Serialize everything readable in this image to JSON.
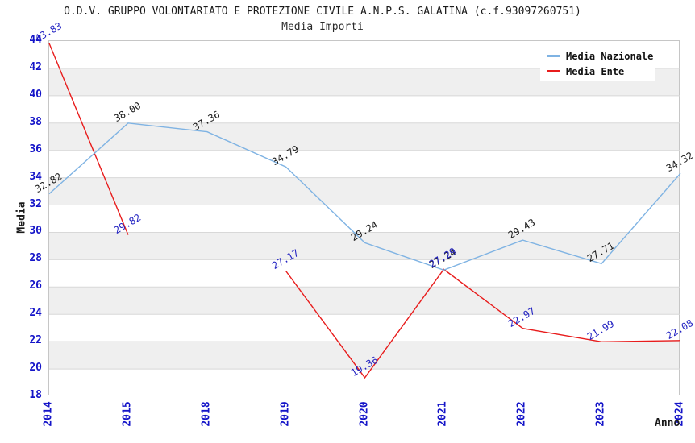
{
  "header": {
    "title": "O.D.V. GRUPPO VOLONTARIATO E PROTEZIONE CIVILE A.N.P.S. GALATINA (c.f.93097260751)",
    "subtitle": "Media Importi"
  },
  "chart_data": {
    "type": "line",
    "title": "O.D.V. GRUPPO VOLONTARIATO E PROTEZIONE CIVILE A.N.P.S. GALATINA (c.f.93097260751)",
    "subtitle": "Media Importi",
    "categories": [
      "2014",
      "2015",
      "2018",
      "2019",
      "2020",
      "2021",
      "2022",
      "2023",
      "2024"
    ],
    "series": [
      {
        "name": "Media Nazionale",
        "color": "#7fb3e3",
        "label_color": "#1a1a1a",
        "values": [
          32.82,
          38.0,
          37.36,
          34.79,
          29.24,
          27.24,
          29.43,
          27.71,
          34.32
        ],
        "labels": [
          "32.82",
          "38.00",
          "37.36",
          "34.79",
          "29.24",
          "27.24",
          "29.43",
          "27.71",
          "34.32"
        ]
      },
      {
        "name": "Media Ente",
        "color": "#e81c1c",
        "label_color": "#2323c2",
        "values": [
          43.83,
          29.82,
          null,
          27.17,
          19.36,
          27.29,
          22.97,
          21.99,
          22.08
        ],
        "labels": [
          "43.83",
          "29.82",
          "",
          "27.17",
          "19.36",
          "27.29",
          "22.97",
          "21.99",
          "22.08"
        ]
      }
    ],
    "xlabel": "Anno",
    "ylabel": "Media",
    "ylim": [
      18,
      44
    ],
    "ytick_step": 2,
    "grid": true,
    "legend_position": "top-right",
    "colors": {
      "tick_label": "#1414c8",
      "band": "#efefef",
      "gridline": "#d8d8d8",
      "plot_border": "#c6c6c6",
      "background": "#ffffff"
    }
  }
}
